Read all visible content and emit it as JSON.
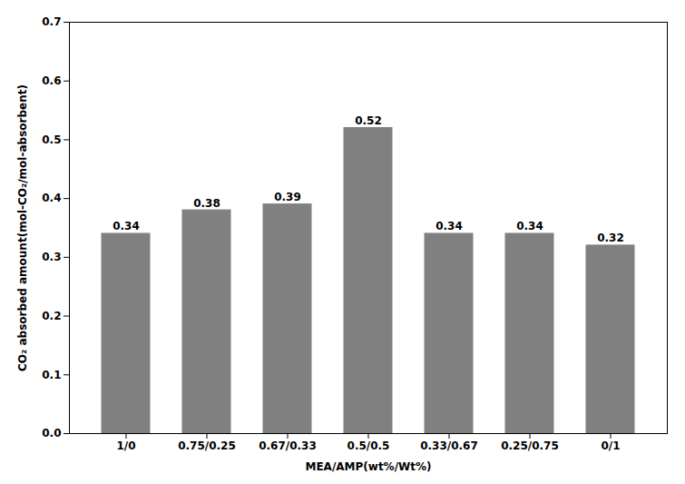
{
  "chart_data": {
    "type": "bar",
    "categories": [
      "1/0",
      "0.75/0.25",
      "0.67/0.33",
      "0.5/0.5",
      "0.33/0.67",
      "0.25/0.75",
      "0/1"
    ],
    "values": [
      0.34,
      0.38,
      0.39,
      0.52,
      0.34,
      0.34,
      0.32
    ],
    "color": "#808080",
    "xlabel": "MEA/AMP(wt%/Wt%)",
    "ylabel": "CO₂ absorbed amount(mol-CO₂/mol-absorbent)",
    "ylim": [
      0,
      0.7
    ],
    "yticks": [
      {
        "value": 0,
        "label": "0.0"
      },
      0.1,
      0.2,
      0.3,
      0.4,
      0.5,
      0.6,
      0.7
    ],
    "grid": false,
    "data_labels": true
  }
}
